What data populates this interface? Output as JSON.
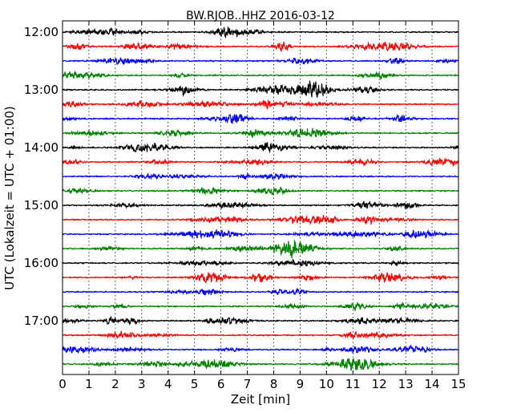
{
  "chart_data": {
    "type": "line",
    "title": "BW.RJOB..HHZ 2016-03-12",
    "xlabel": "Zeit  [min]",
    "ylabel": "UTC (Lokalzeit = UTC + 01:00)",
    "x_ticks": [
      "0",
      "1",
      "2",
      "3",
      "4",
      "5",
      "6",
      "7",
      "8",
      "9",
      "10",
      "11",
      "12",
      "13",
      "14",
      "15"
    ],
    "xlim": [
      0,
      15
    ],
    "y_ticks": [
      "12:00",
      "13:00",
      "14:00",
      "15:00",
      "16:00",
      "17:00"
    ],
    "trace_interval_minutes": 15,
    "num_traces": 24,
    "trace_start_times": [
      "12:00",
      "12:15",
      "12:30",
      "12:45",
      "13:00",
      "13:15",
      "13:30",
      "13:45",
      "14:00",
      "14:15",
      "14:30",
      "14:45",
      "15:00",
      "15:15",
      "15:30",
      "15:45",
      "16:00",
      "16:15",
      "16:30",
      "16:45",
      "17:00",
      "17:15",
      "17:30",
      "17:45"
    ],
    "trace_colors": [
      "#000000",
      "#ff0000",
      "#0000ff",
      "#008000"
    ],
    "grid": "vertical dotted lines at each minute"
  }
}
